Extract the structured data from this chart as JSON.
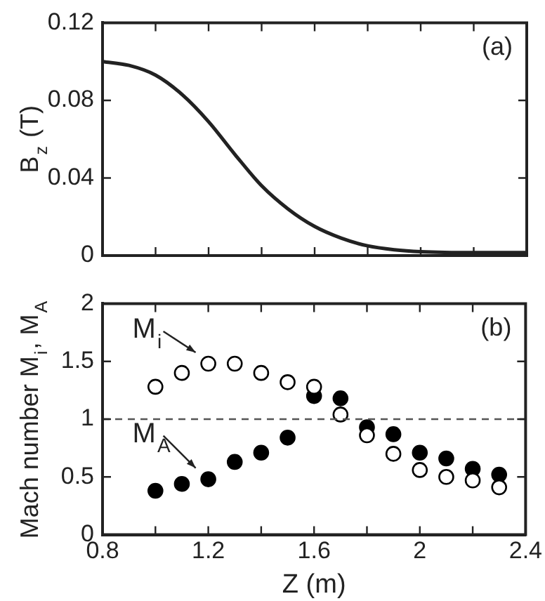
{
  "chart_data": [
    {
      "type": "line",
      "ylabel": "B$_{z}$ (T)",
      "annotations": [
        "(a)"
      ],
      "x": [
        0.8,
        0.9,
        1.0,
        1.1,
        1.2,
        1.3,
        1.4,
        1.5,
        1.6,
        1.7,
        1.8,
        1.9,
        2.0,
        2.2,
        2.4
      ],
      "series": [
        {
          "color": "#222222",
          "values": [
            0.1,
            0.098,
            0.093,
            0.083,
            0.069,
            0.052,
            0.036,
            0.024,
            0.015,
            0.009,
            0.005,
            0.003,
            0.002,
            0.0015,
            0.0015
          ]
        }
      ],
      "xlim": [
        0.8,
        2.4
      ],
      "xticks": [
        {
          "value": 0.8,
          "label": null
        },
        {
          "value": 1.0,
          "label": null
        },
        {
          "value": 1.2,
          "label": null
        },
        {
          "value": 1.4,
          "label": null
        },
        {
          "value": 1.6,
          "label": null
        },
        {
          "value": 1.8,
          "label": null
        },
        {
          "value": 2.0,
          "label": null
        },
        {
          "value": 2.2,
          "label": null
        },
        {
          "value": 2.4,
          "label": null
        }
      ],
      "ylim": [
        0,
        0.12
      ],
      "yticks": [
        0,
        0.04,
        0.08,
        0.12
      ],
      "tick_labels": "y",
      "marker": "none",
      "line_style": "solid",
      "legend": false,
      "grid": false
    },
    {
      "type": "scatter",
      "xlabel": "Z (m)",
      "ylabel": "Mach number M$_{i}$, M$_{A}$",
      "annotations": [
        "(b)"
      ],
      "x": [
        1.0,
        1.1,
        1.2,
        1.3,
        1.4,
        1.5,
        1.6,
        1.7,
        1.8,
        1.9,
        2.0,
        2.1,
        2.2,
        2.3
      ],
      "series": [
        {
          "name": "M$_{i}$",
          "color": "#000000",
          "values": [
            1.28,
            1.4,
            1.48,
            1.48,
            1.4,
            1.32,
            1.28,
            1.04,
            0.86,
            0.7,
            0.56,
            0.5,
            0.47,
            0.41
          ]
        },
        {
          "name": "M$_{A}$",
          "color": "#000000",
          "values": [
            0.38,
            0.44,
            0.48,
            0.63,
            0.71,
            0.84,
            1.2,
            1.18,
            0.93,
            0.87,
            0.71,
            0.66,
            0.57,
            0.52
          ]
        }
      ],
      "xlim": [
        0.8,
        2.4
      ],
      "xticks": [
        0.8,
        {
          "value": 1.0,
          "label": null
        },
        1.2,
        {
          "value": 1.4,
          "label": null
        },
        1.6,
        {
          "value": 1.8,
          "label": null
        },
        2,
        {
          "value": 2.2,
          "label": null
        },
        2.4
      ],
      "ylim": [
        0,
        2
      ],
      "yticks": [
        0,
        0.5,
        1,
        1.5,
        2
      ],
      "ref_lines": [
        {
          "axis": "y",
          "value": 1,
          "color": "#555555",
          "line_style": "dashed"
        }
      ],
      "marker": "circle",
      "legend": false,
      "grid": false
    }
  ]
}
